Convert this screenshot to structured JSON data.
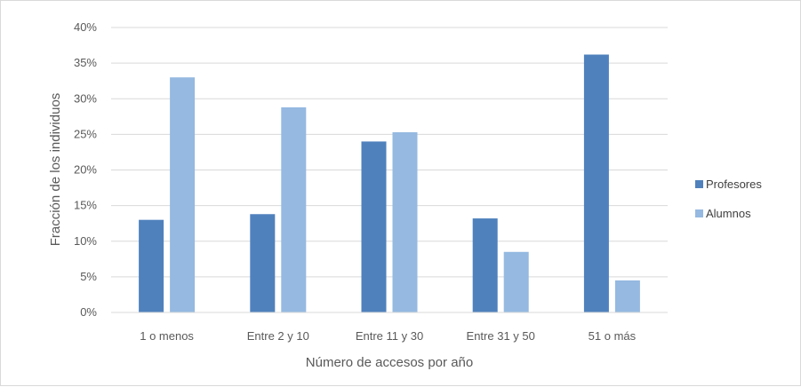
{
  "chart_data": {
    "type": "bar",
    "title": "",
    "xlabel": "Número de accesos por año",
    "ylabel": "Fracción de los individuos",
    "categories": [
      "1 o menos",
      "Entre 2 y 10",
      "Entre 11 y 30",
      "Entre 31 y 50",
      "51 o más"
    ],
    "series": [
      {
        "name": "Profesores",
        "color": "#4f81bd",
        "values": [
          0.13,
          0.138,
          0.24,
          0.132,
          0.362
        ]
      },
      {
        "name": "Alumnos",
        "color": "#95b9e1",
        "values": [
          0.33,
          0.288,
          0.253,
          0.085,
          0.045
        ]
      }
    ],
    "ylim": [
      0,
      0.4
    ],
    "yticks": [
      0,
      0.05,
      0.1,
      0.15,
      0.2,
      0.25,
      0.3,
      0.35,
      0.4
    ],
    "ytick_labels": [
      "0%",
      "5%",
      "10%",
      "15%",
      "20%",
      "25%",
      "30%",
      "35%",
      "40%"
    ],
    "grid": true,
    "gridline_color": "#d9d9d9",
    "legend_position": "right"
  }
}
